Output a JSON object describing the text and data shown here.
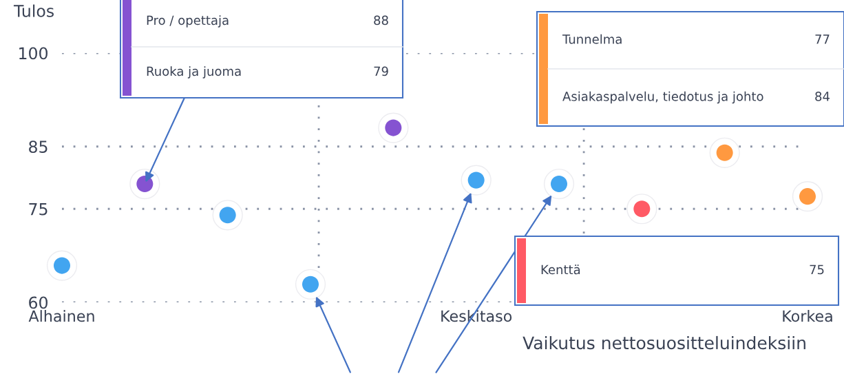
{
  "chart_data": {
    "type": "scatter",
    "ylabel": "Tulos",
    "xlabel": "Vaikutus nettosuositteluindeksiin",
    "categories": [
      "Alhainen",
      null,
      null,
      null,
      null,
      "Keskitaso",
      null,
      null,
      null,
      "Korkea"
    ],
    "ylim": [
      60,
      100
    ],
    "yticks": [
      60,
      75,
      85,
      100
    ],
    "grid": "y",
    "marker": "circle",
    "series": [
      {
        "color": "#42a5f0",
        "values": [
          65.9,
          null,
          74.0,
          62.9,
          null,
          79.6,
          79.0,
          null,
          null,
          null
        ]
      },
      {
        "color": "#8553d1",
        "values": [
          null,
          79,
          null,
          null,
          88,
          null,
          null,
          null,
          null,
          null
        ]
      },
      {
        "color": "#ff9940",
        "values": [
          null,
          null,
          null,
          null,
          null,
          null,
          null,
          null,
          84,
          77
        ]
      },
      {
        "color": "#ff5a65",
        "values": [
          null,
          null,
          null,
          null,
          null,
          null,
          null,
          75,
          null,
          null
        ]
      }
    ],
    "annotations": [
      "Pro / opettaja",
      "88",
      "Ruoka ja juoma",
      "79",
      "Tunnelma",
      "77",
      "Asiakaspalvelu, tiedotus ja johto",
      "84",
      "Kenttä",
      "75"
    ]
  }
}
